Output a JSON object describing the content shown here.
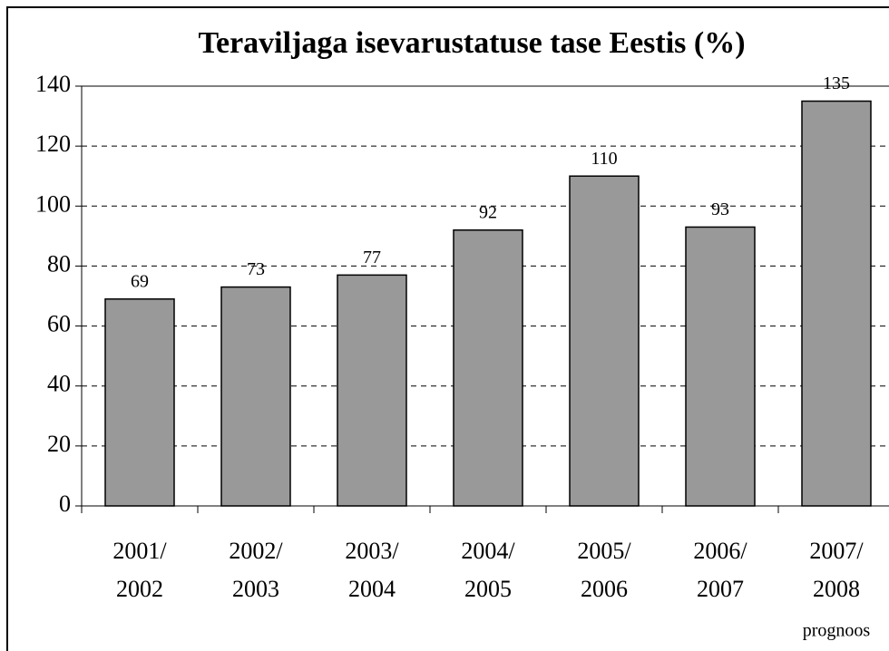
{
  "chart_data": {
    "type": "bar",
    "title": "Teraviljaga isevarustatuse tase Eestis (%)",
    "categories": [
      [
        "2001/",
        "2002"
      ],
      [
        "2002/",
        "2003"
      ],
      [
        "2003/",
        "2004"
      ],
      [
        "2004/",
        "2005"
      ],
      [
        "2005/",
        "2006"
      ],
      [
        "2006/",
        "2007"
      ],
      [
        "2007/",
        "2008"
      ]
    ],
    "annotation": "prognoos",
    "values": [
      69,
      73,
      77,
      92,
      110,
      93,
      135
    ],
    "color": "#999999",
    "ylim": [
      0,
      140
    ],
    "yticks": [
      0,
      20,
      40,
      60,
      80,
      100,
      120,
      140
    ],
    "grid": true
  }
}
